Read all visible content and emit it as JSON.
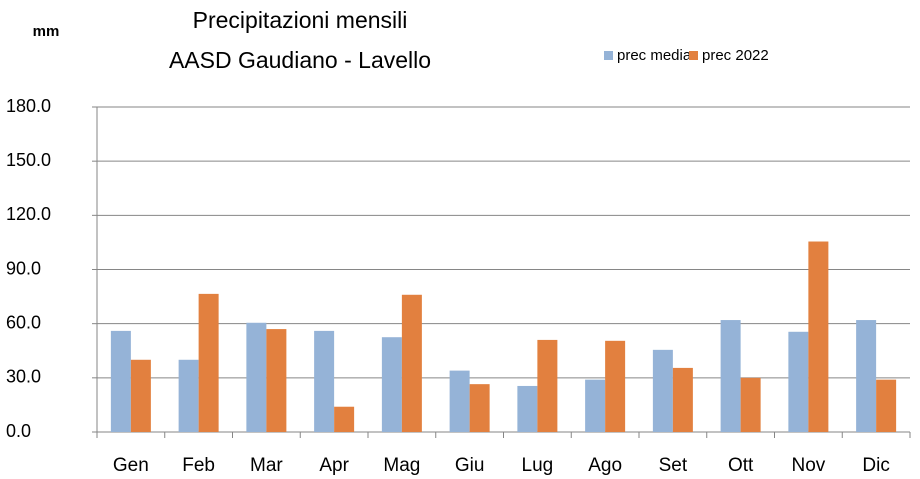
{
  "chart_data": {
    "type": "bar",
    "title": [
      "Precipitazioni mensili",
      "AASD Gaudiano - Lavello"
    ],
    "y_label": "mm",
    "categories": [
      "Gen",
      "Feb",
      "Mar",
      "Apr",
      "Mag",
      "Giu",
      "Lug",
      "Ago",
      "Set",
      "Ott",
      "Nov",
      "Dic"
    ],
    "series": [
      {
        "name": "prec media",
        "color": "#95b3d7",
        "values": [
          56,
          40,
          60.5,
          56,
          52.5,
          34,
          25.5,
          29,
          45.5,
          62,
          55.5,
          62
        ]
      },
      {
        "name": "prec 2022",
        "color": "#e2803f",
        "values": [
          40,
          76.5,
          57,
          14,
          76,
          26.5,
          51,
          50.5,
          35.5,
          30,
          105.5,
          29
        ]
      }
    ],
    "ylim": [
      0,
      180
    ],
    "yticks": [
      {
        "value": 0,
        "label": "0.0"
      },
      {
        "value": 30,
        "label": "30.0"
      },
      {
        "value": 60,
        "label": "60.0"
      },
      {
        "value": 90,
        "label": "90.0"
      },
      {
        "value": 120,
        "label": "120.0"
      },
      {
        "value": 150,
        "label": "150.0"
      },
      {
        "value": 180,
        "label": "180.0"
      }
    ],
    "grid": true,
    "legend": "top-right"
  }
}
